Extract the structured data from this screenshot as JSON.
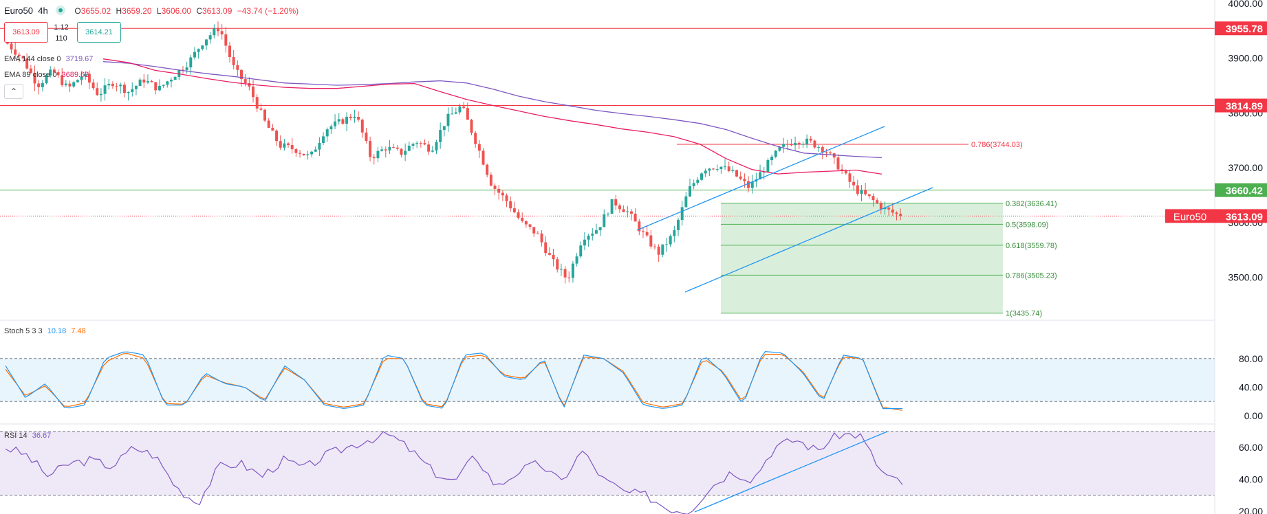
{
  "symbol": {
    "name": "Euro50",
    "interval": "4h"
  },
  "ohlc": {
    "open_label": "O",
    "open": "3655.02",
    "high_label": "H",
    "high": "3659.20",
    "low_label": "L",
    "low": "3606.00",
    "close_label": "C",
    "close": "3613.09",
    "change": "−43.74 (−1.20%)"
  },
  "bid_ask": {
    "sell": "3613.09",
    "spread_top": "1.12",
    "spread_bottom": "110",
    "buy": "3614.21"
  },
  "indicators": {
    "ema144": {
      "label": "EMA 144 close 0",
      "value": "3719.67"
    },
    "ema89": {
      "label": "EMA 89 close 0",
      "value": "3689.63"
    }
  },
  "collapse_icon": "chevron-up-icon",
  "colors": {
    "up": "#26a69a",
    "down": "#ef5350",
    "ema144": "#7e57c2",
    "ema89": "#e91e63",
    "hline_red": "#f23645",
    "hline_green": "#4caf50",
    "channel": "#2196f3",
    "fib_zone": "#d4ecd5",
    "stoch_k": "#2196f3",
    "stoch_d": "#ff6d00",
    "rsi": "#7e57c2"
  },
  "chart_data": [
    {
      "type": "candlestick",
      "title": "Euro50 · 4h",
      "ylim": [
        3435,
        4000
      ],
      "y_ticks": [
        "4000.00",
        "3900.00",
        "3800.00",
        "3700.00",
        "3600.00",
        "3500.00"
      ],
      "horizontal_levels": [
        {
          "value": 3955.78,
          "label": "3955.78",
          "color": "#f23645"
        },
        {
          "value": 3814.89,
          "label": "3814.89",
          "color": "#f23645"
        },
        {
          "value": 3660.42,
          "label": "3660.42",
          "color": "#4caf50"
        }
      ],
      "last_price": {
        "symbol_label": "Euro50",
        "value": 3613.09,
        "label": "3613.09"
      },
      "fibonacci": [
        {
          "label": "0.786(3744.03)",
          "value": 3744.03
        },
        {
          "label": "0.382(3636.41)",
          "value": 3636.41
        },
        {
          "label": "0.5(3598.09)",
          "value": 3598.09
        },
        {
          "label": "0.618(3559.78)",
          "value": 3559.78
        },
        {
          "label": "0.786(3505.23)",
          "value": 3505.23
        },
        {
          "label": "1(3435.74)",
          "value": 3435.74
        }
      ],
      "anchors": [
        3928,
        3900,
        3852,
        3878,
        3845,
        3872,
        3835,
        3858,
        3840,
        3862,
        3845,
        3870,
        3895,
        3935,
        3958,
        3880,
        3845,
        3785,
        3742,
        3735,
        3720,
        3772,
        3785,
        3800,
        3720,
        3738,
        3728,
        3750,
        3735,
        3790,
        3814,
        3745,
        3670,
        3640,
        3600,
        3580,
        3530,
        3497,
        3575,
        3590,
        3640,
        3620,
        3580,
        3545,
        3580,
        3660,
        3700,
        3705,
        3690,
        3665,
        3700,
        3735,
        3752,
        3748,
        3735,
        3700,
        3662,
        3645,
        3625,
        3613
      ],
      "ema144": [
        3895,
        3892,
        3886,
        3879,
        3873,
        3868,
        3862,
        3856,
        3854,
        3852,
        3853,
        3855,
        3858,
        3860,
        3856,
        3845,
        3832,
        3822,
        3814,
        3806,
        3800,
        3795,
        3789,
        3782,
        3771,
        3755,
        3740,
        3728,
        3725,
        3722,
        3719.67
      ],
      "ema89": [
        3900,
        3893,
        3879,
        3872,
        3864,
        3857,
        3852,
        3848,
        3846,
        3846,
        3850,
        3854,
        3855,
        3840,
        3826,
        3815,
        3805,
        3795,
        3787,
        3780,
        3772,
        3766,
        3758,
        3744,
        3718,
        3698,
        3690,
        3693,
        3695,
        3697,
        3689.63
      ]
    },
    {
      "type": "line",
      "title": "Stoch 5 3 3",
      "series": [
        {
          "name": "K",
          "value_label": "10.18"
        },
        {
          "name": "D",
          "value_label": "7.48"
        }
      ],
      "ylim": [
        0,
        100
      ],
      "y_ticks": [
        "80.00",
        "40.00",
        "0.00"
      ],
      "band": [
        20,
        80
      ],
      "anchors_k": [
        70,
        25,
        45,
        10,
        15,
        80,
        90,
        85,
        15,
        15,
        60,
        45,
        40,
        20,
        70,
        50,
        15,
        10,
        15,
        85,
        80,
        15,
        10,
        85,
        88,
        55,
        50,
        80,
        10,
        85,
        80,
        60,
        15,
        10,
        15,
        85,
        60,
        15,
        90,
        88,
        60,
        20,
        85,
        80,
        10,
        10
      ],
      "anchors_d": [
        65,
        28,
        42,
        12,
        18,
        75,
        88,
        80,
        17,
        16,
        57,
        46,
        40,
        22,
        67,
        50,
        17,
        12,
        17,
        80,
        80,
        17,
        12,
        82,
        85,
        57,
        52,
        78,
        12,
        82,
        80,
        62,
        18,
        12,
        17,
        80,
        62,
        18,
        86,
        86,
        62,
        22,
        82,
        80,
        12,
        7.48
      ]
    },
    {
      "type": "line",
      "title": "RSI 14",
      "series": [
        {
          "name": "RSI",
          "value_label": "36.67"
        }
      ],
      "ylim": [
        15,
        70
      ],
      "y_ticks": [
        "60.00",
        "40.00",
        "20.00"
      ],
      "band": [
        30,
        70
      ],
      "anchors": [
        60,
        55,
        42,
        50,
        52,
        48,
        60,
        55,
        35,
        25,
        48,
        50,
        42,
        52,
        47,
        55,
        60,
        65,
        68,
        58,
        45,
        38,
        55,
        35,
        45,
        50,
        38,
        58,
        40,
        32,
        30,
        22,
        20,
        35,
        45,
        40,
        60,
        65,
        58,
        68,
        68,
        45,
        36.67
      ]
    }
  ]
}
